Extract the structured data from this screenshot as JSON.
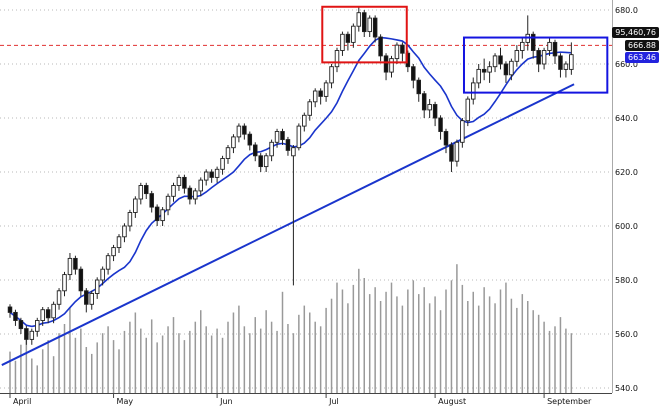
{
  "chart_data": {
    "type": "candlestick",
    "y_ticks": [
      680,
      660,
      640,
      620,
      600,
      580,
      560,
      540
    ],
    "ylim": [
      537,
      684
    ],
    "months": [
      {
        "label": "April",
        "day": 0
      },
      {
        "label": "May",
        "day": 19
      },
      {
        "label": "Jun",
        "day": 38
      },
      {
        "label": "Jul",
        "day": 58
      },
      {
        "label": "August",
        "day": 78
      },
      {
        "label": "September",
        "day": 98
      }
    ],
    "price_line": 666.88,
    "last_price": 663.46,
    "badges": [
      {
        "label": "95,460,76",
        "bg": "#111111",
        "color": "#ffffff"
      },
      {
        "label": "666.88",
        "bg": "#111111",
        "color": "#ffffff"
      },
      {
        "label": "663.46",
        "bg": "#2323dd",
        "color": "#ffffff"
      }
    ],
    "ma_period": 10,
    "trendline": {
      "day1": -1.5,
      "price1": 548.5,
      "day2": 103.5,
      "price2": 652.5
    },
    "annotations": {
      "red_box": {
        "day1": 57.3,
        "price_low": 660.6,
        "day2": 72.8,
        "price_high": 681.2
      },
      "blue_box": {
        "day1": 83.3,
        "price_low": 649.4,
        "day2": 109.6,
        "price_high": 669.8
      }
    },
    "colors": {
      "up": "#ffffff",
      "down": "#111111",
      "outline": "#222222",
      "volume": "#999999",
      "ma": "#1a35cc",
      "trend": "#1a35cc",
      "grid": "#b8b8b8",
      "price_line": "#e03030",
      "red_box": "#e01414",
      "blue_box": "#1414e0",
      "axis_text": "#111111"
    },
    "candles": [
      [
        570,
        571,
        566,
        568
      ],
      [
        568,
        569,
        563,
        565
      ],
      [
        565,
        566,
        560,
        562
      ],
      [
        562,
        563,
        556,
        558
      ],
      [
        558,
        562,
        556,
        561
      ],
      [
        561,
        566,
        559,
        565
      ],
      [
        565,
        570,
        563,
        569
      ],
      [
        569,
        570,
        564,
        566
      ],
      [
        566,
        572,
        564,
        571
      ],
      [
        571,
        577,
        569,
        576
      ],
      [
        576,
        583,
        574,
        582
      ],
      [
        582,
        590,
        580,
        588
      ],
      [
        588,
        589,
        582,
        584
      ],
      [
        584,
        585,
        574,
        576
      ],
      [
        576,
        577,
        568,
        571
      ],
      [
        571,
        576,
        569,
        575
      ],
      [
        575,
        581,
        573,
        580
      ],
      [
        580,
        585,
        578,
        584
      ],
      [
        584,
        590,
        582,
        589
      ],
      [
        589,
        593,
        587,
        592
      ],
      [
        592,
        597,
        590,
        596
      ],
      [
        596,
        601,
        594,
        600
      ],
      [
        600,
        606,
        598,
        605
      ],
      [
        605,
        611,
        603,
        610
      ],
      [
        610,
        616,
        608,
        615
      ],
      [
        615,
        616,
        610,
        612
      ],
      [
        612,
        613,
        605,
        607
      ],
      [
        607,
        608,
        600,
        602
      ],
      [
        602,
        607,
        600,
        606
      ],
      [
        606,
        612,
        604,
        611
      ],
      [
        611,
        616,
        609,
        615
      ],
      [
        615,
        619,
        613,
        618
      ],
      [
        618,
        619,
        612,
        614
      ],
      [
        614,
        615,
        608,
        610
      ],
      [
        610,
        614,
        608,
        613
      ],
      [
        613,
        618,
        611,
        617
      ],
      [
        617,
        621,
        615,
        620
      ],
      [
        620,
        621,
        616,
        618
      ],
      [
        618,
        622,
        616,
        621
      ],
      [
        621,
        626,
        619,
        625
      ],
      [
        625,
        630,
        623,
        629
      ],
      [
        629,
        634,
        627,
        633
      ],
      [
        633,
        638,
        631,
        637
      ],
      [
        637,
        638,
        632,
        634
      ],
      [
        634,
        635,
        628,
        630
      ],
      [
        630,
        631,
        624,
        626
      ],
      [
        626,
        627,
        620,
        622
      ],
      [
        622,
        627,
        620,
        626
      ],
      [
        626,
        632,
        624,
        631
      ],
      [
        631,
        636,
        629,
        635
      ],
      [
        635,
        636,
        630,
        632
      ],
      [
        632,
        633,
        626,
        628
      ],
      [
        626,
        630,
        578,
        629
      ],
      [
        629,
        638,
        628,
        637
      ],
      [
        637,
        642,
        635,
        641
      ],
      [
        641,
        647,
        639,
        646
      ],
      [
        646,
        651,
        644,
        650
      ],
      [
        650,
        651,
        645,
        648
      ],
      [
        648,
        654,
        646,
        653
      ],
      [
        653,
        660,
        651,
        659
      ],
      [
        659,
        666,
        657,
        665
      ],
      [
        665,
        672,
        663,
        671
      ],
      [
        671,
        672,
        665,
        668
      ],
      [
        668,
        675,
        666,
        674
      ],
      [
        674,
        681,
        672,
        679
      ],
      [
        679,
        680,
        670,
        672
      ],
      [
        672,
        678,
        670,
        677
      ],
      [
        677,
        678,
        668,
        670
      ],
      [
        670,
        671,
        661,
        663
      ],
      [
        663,
        664,
        654,
        657
      ],
      [
        657,
        663,
        655,
        662
      ],
      [
        662,
        668,
        660,
        667
      ],
      [
        667,
        668,
        661,
        664
      ],
      [
        664,
        665,
        657,
        659
      ],
      [
        659,
        660,
        651,
        654
      ],
      [
        654,
        655,
        646,
        649
      ],
      [
        649,
        650,
        640,
        643
      ],
      [
        643,
        647,
        640,
        645
      ],
      [
        645,
        646,
        637,
        640
      ],
      [
        640,
        641,
        632,
        635
      ],
      [
        635,
        636,
        627,
        630
      ],
      [
        630,
        631,
        620,
        624
      ],
      [
        624,
        632,
        622,
        631
      ],
      [
        631,
        640,
        629,
        639
      ],
      [
        639,
        648,
        637,
        647
      ],
      [
        647,
        655,
        645,
        653
      ],
      [
        653,
        660,
        651,
        658
      ],
      [
        658,
        662,
        654,
        657
      ],
      [
        657,
        661,
        653,
        659
      ],
      [
        659,
        664,
        657,
        663
      ],
      [
        663,
        666,
        658,
        660
      ],
      [
        660,
        661,
        653,
        656
      ],
      [
        656,
        662,
        654,
        661
      ],
      [
        661,
        667,
        659,
        665
      ],
      [
        665,
        670,
        662,
        668
      ],
      [
        668,
        678,
        665,
        671
      ],
      [
        671,
        672,
        662,
        665
      ],
      [
        665,
        666,
        657,
        660
      ],
      [
        660,
        666,
        658,
        665
      ],
      [
        665,
        670,
        663,
        668
      ],
      [
        668,
        669,
        660,
        663
      ],
      [
        663,
        664,
        655,
        658
      ],
      [
        658,
        661,
        655,
        660
      ],
      [
        658,
        668,
        656,
        663.46
      ]
    ],
    "volumes": [
      36,
      28,
      42,
      50,
      30,
      24,
      38,
      46,
      32,
      52,
      60,
      74,
      48,
      56,
      40,
      34,
      44,
      52,
      58,
      46,
      38,
      54,
      62,
      70,
      56,
      48,
      64,
      44,
      50,
      58,
      66,
      52,
      46,
      54,
      62,
      72,
      58,
      50,
      56,
      48,
      62,
      70,
      76,
      58,
      52,
      66,
      56,
      72,
      62,
      54,
      88,
      60,
      52,
      68,
      76,
      70,
      62,
      58,
      74,
      82,
      96,
      90,
      78,
      94,
      108,
      100,
      86,
      92,
      80,
      88,
      96,
      84,
      76,
      90,
      98,
      86,
      92,
      78,
      84,
      72,
      90,
      98,
      112,
      94,
      80,
      88,
      76,
      92,
      84,
      78,
      90,
      96,
      82,
      74,
      86,
      80,
      72,
      68,
      62,
      54,
      58,
      66,
      56,
      52
    ]
  }
}
